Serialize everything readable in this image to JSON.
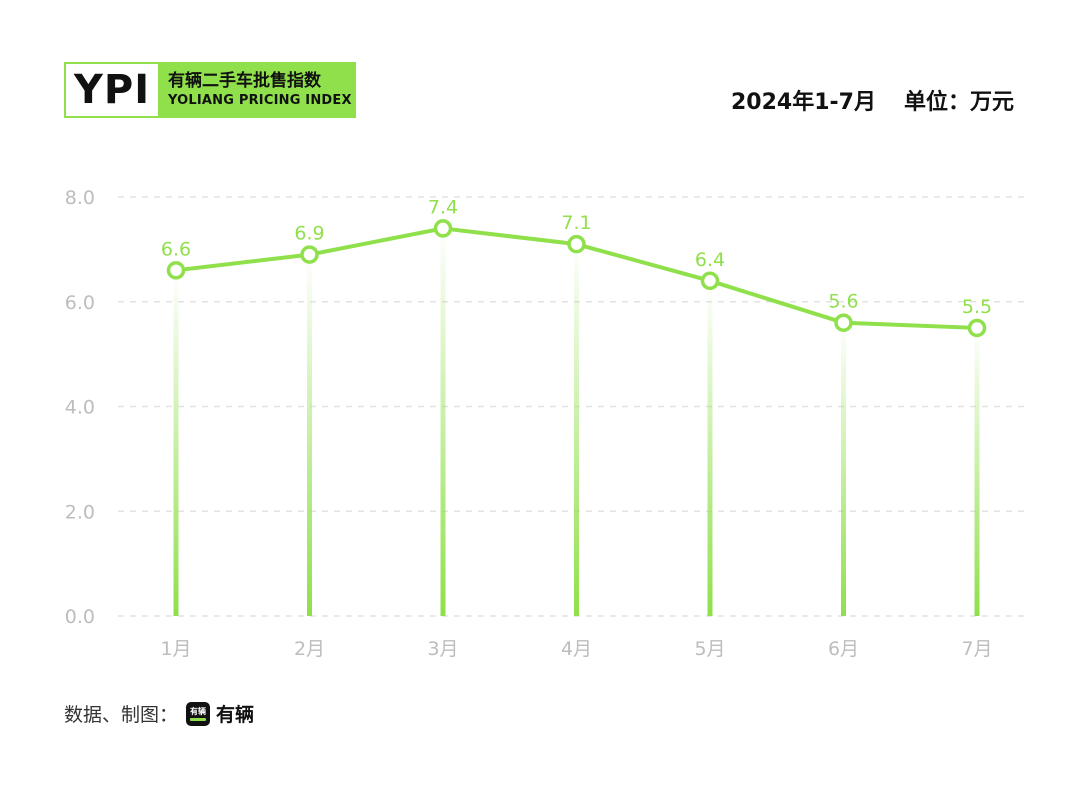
{
  "header": {
    "logo_mark": "YPI",
    "logo_title_cn": "有辆二手车批售指数",
    "logo_title_en": "YOLIANG PRICING INDEX",
    "period": "2024年1-7月",
    "unit": "单位：万元"
  },
  "footer": {
    "source_label": "数据、制图：",
    "app_icon_text": "有辆",
    "brand": "有辆"
  },
  "colors": {
    "accent": "#8fe04a",
    "grid": "#e3e3e3",
    "axis_text": "#bdbdbd"
  },
  "chart_data": {
    "type": "line",
    "categories": [
      "1月",
      "2月",
      "3月",
      "4月",
      "5月",
      "6月",
      "7月"
    ],
    "values": [
      6.6,
      6.9,
      7.4,
      7.1,
      6.4,
      5.6,
      5.5
    ],
    "data_labels": [
      "6.6",
      "6.9",
      "7.4",
      "7.1",
      "6.4",
      "5.6",
      "5.5"
    ],
    "y_ticks": [
      "0.0",
      "2.0",
      "4.0",
      "6.0",
      "8.0"
    ],
    "ylim": [
      0,
      8
    ],
    "grid": true,
    "title": "",
    "xlabel": "",
    "ylabel": ""
  }
}
